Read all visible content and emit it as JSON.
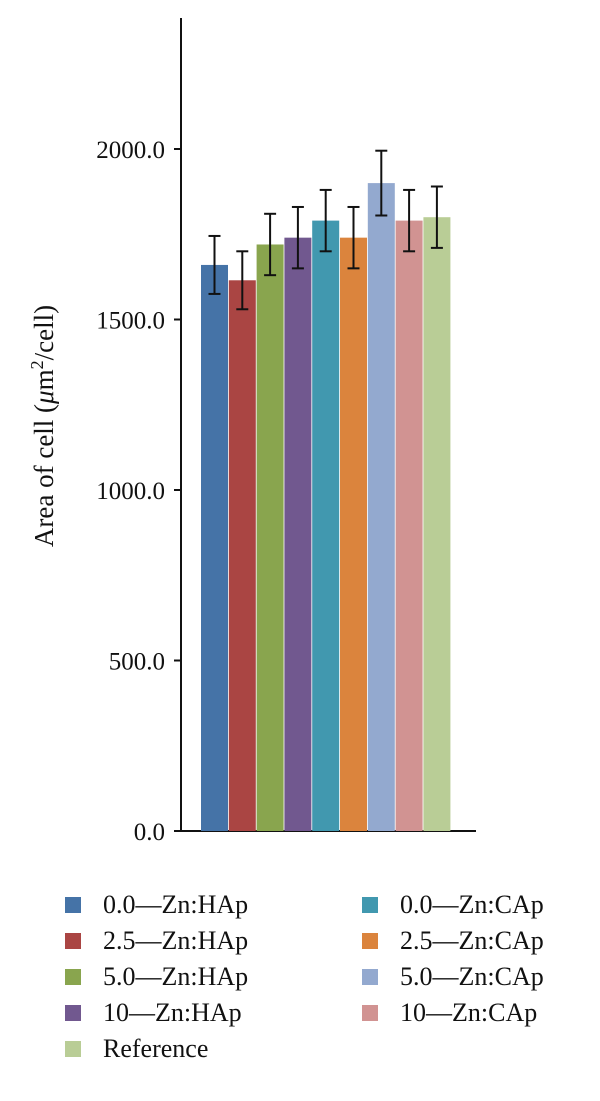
{
  "chart_data": {
    "type": "bar",
    "title": "",
    "xlabel": "",
    "ylabel": "Area of cell (μm²/cell)",
    "ylim": [
      0,
      2400
    ],
    "yticks": [
      "0.0",
      "500.0",
      "1000.0",
      "1500.0",
      "2000.0"
    ],
    "ytick_values": [
      0,
      500,
      1000,
      1500,
      2000
    ],
    "grid": false,
    "legend_position": "bottom",
    "series": [
      {
        "name": "0.0—Zn:HAp",
        "value": 1660,
        "error": 85,
        "color": "#4573a7"
      },
      {
        "name": "2.5—Zn:HAp",
        "value": 1615,
        "error": 85,
        "color": "#aa4543"
      },
      {
        "name": "5.0—Zn:HAp",
        "value": 1720,
        "error": 90,
        "color": "#89a54e"
      },
      {
        "name": "10—Zn:HAp",
        "value": 1740,
        "error": 90,
        "color": "#71588f"
      },
      {
        "name": "0.0—Zn:CAp",
        "value": 1790,
        "error": 90,
        "color": "#4198af"
      },
      {
        "name": "2.5—Zn:CAp",
        "value": 1740,
        "error": 90,
        "color": "#db843d"
      },
      {
        "name": "5.0—Zn:CAp",
        "value": 1900,
        "error": 95,
        "color": "#93a9cf"
      },
      {
        "name": "10—Zn:CAp",
        "value": 1790,
        "error": 90,
        "color": "#d19392"
      },
      {
        "name": "Reference",
        "value": 1800,
        "error": 90,
        "color": "#b9cd96"
      }
    ]
  }
}
